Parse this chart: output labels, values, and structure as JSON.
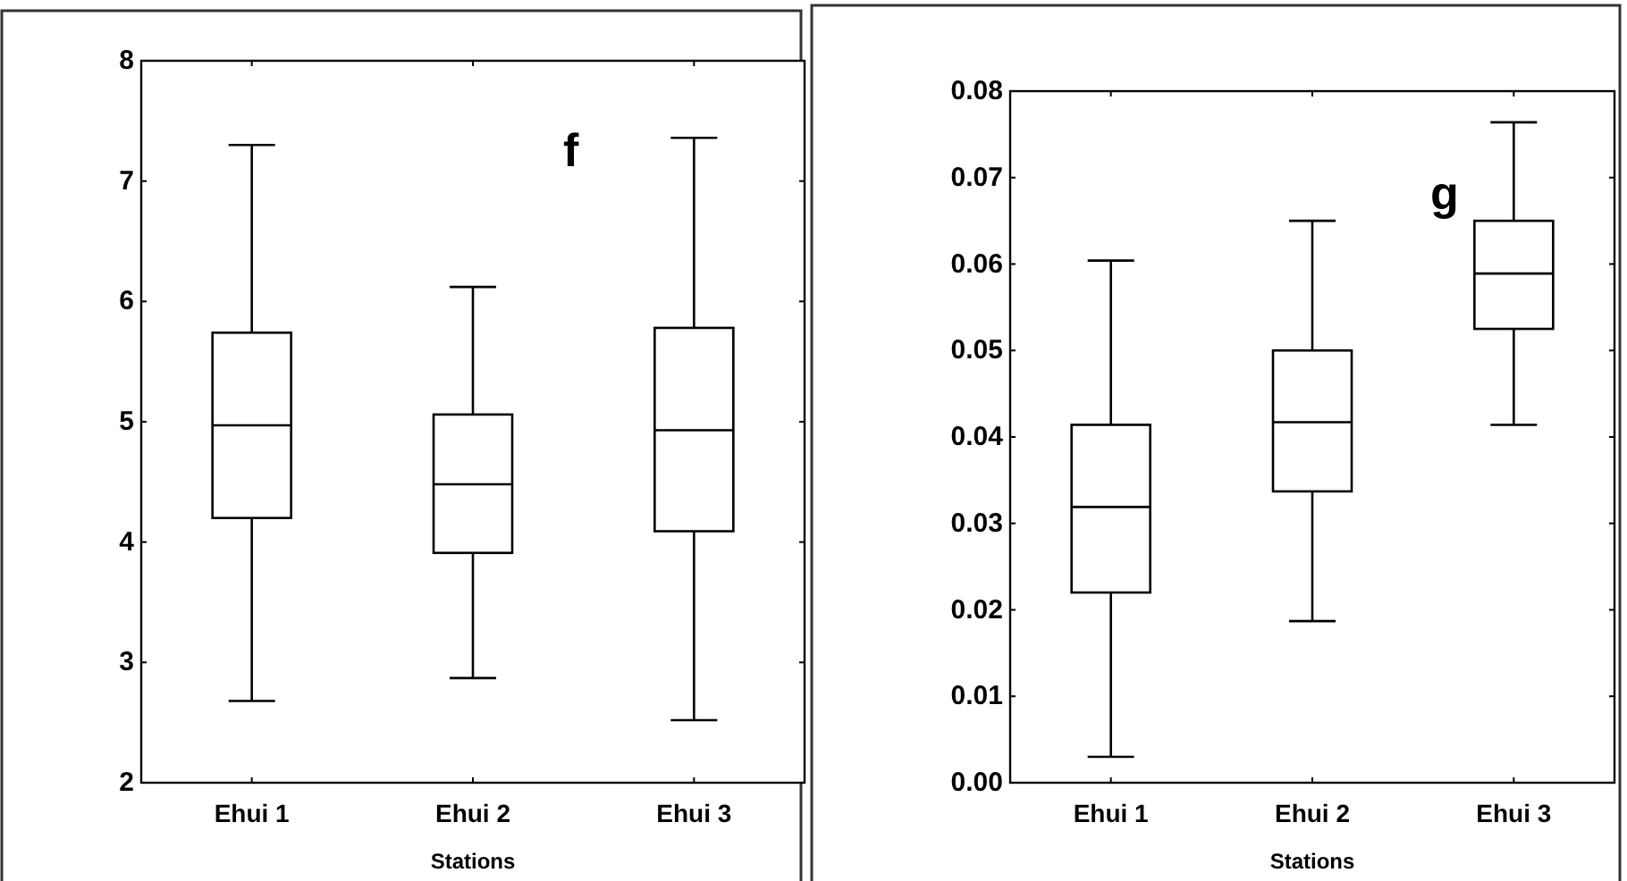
{
  "chart_data": [
    {
      "type": "box",
      "xlabel": "Stations",
      "categories": [
        "Ehui 1",
        "Ehui 2",
        "Ehui 3"
      ],
      "ylim": [
        2,
        8
      ],
      "yticks": [
        2,
        3,
        4,
        5,
        6,
        7,
        8
      ],
      "annotations": [
        "f"
      ],
      "boxes": [
        {
          "low": 2.68,
          "q1": 4.2,
          "median": 4.97,
          "q3": 5.74,
          "high": 7.3
        },
        {
          "low": 2.87,
          "q1": 3.91,
          "median": 4.48,
          "q3": 5.06,
          "high": 6.12
        },
        {
          "low": 2.52,
          "q1": 4.09,
          "median": 4.93,
          "q3": 5.78,
          "high": 7.36
        }
      ]
    },
    {
      "type": "box",
      "xlabel": "Stations",
      "categories": [
        "Ehui 1",
        "Ehui 2",
        "Ehui 3"
      ],
      "ylim": [
        0,
        0.08
      ],
      "yticks": [
        {
          "value": 0,
          "label": "0.00"
        },
        0.01,
        0.02,
        0.03,
        0.04,
        0.05,
        0.06,
        0.07,
        0.08
      ],
      "annotations": [
        "g"
      ],
      "boxes": [
        {
          "low": 0.003,
          "q1": 0.022,
          "median": 0.0319,
          "q3": 0.0414,
          "high": 0.0604
        },
        {
          "low": 0.0187,
          "q1": 0.0337,
          "median": 0.0417,
          "q3": 0.05,
          "high": 0.065
        },
        {
          "low": 0.0414,
          "q1": 0.0525,
          "median": 0.0589,
          "q3": 0.065,
          "high": 0.0764
        }
      ]
    }
  ]
}
